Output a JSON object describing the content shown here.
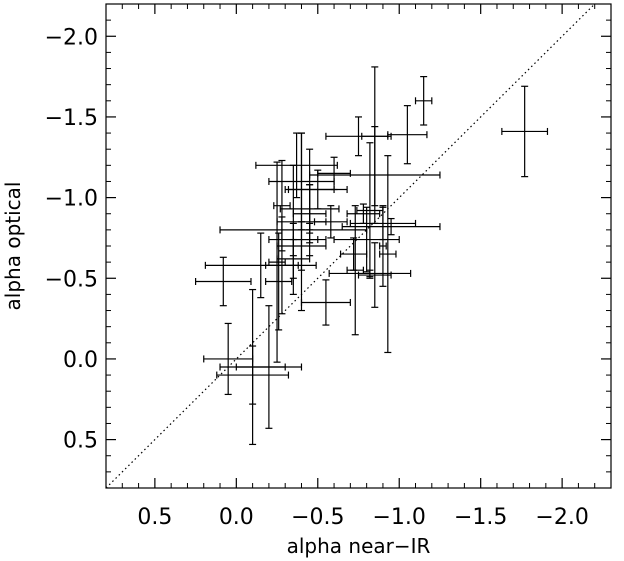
{
  "chart_data": {
    "type": "scatter",
    "xlabel": "alpha near−IR",
    "ylabel": "alpha optical",
    "xlim": [
      0.8,
      -2.3
    ],
    "ylim": [
      0.8,
      -2.2
    ],
    "x_ticks": [
      0.5,
      0.0,
      -0.5,
      -1.0,
      -1.5,
      -2.0
    ],
    "x_tick_labels": [
      "0.5",
      "0.0",
      "−0.5",
      "−1.0",
      "−1.5",
      "−2.0"
    ],
    "y_ticks": [
      -2.0,
      -1.5,
      -1.0,
      -0.5,
      0.0,
      0.5
    ],
    "y_tick_labels": [
      "−2.0",
      "−1.5",
      "−1.0",
      "−0.5",
      "0.0",
      "0.5"
    ],
    "reference_line": "y = x (dotted)",
    "grid": false,
    "legend": "none",
    "points": [
      {
        "x": 0.05,
        "y": 0.0,
        "xerr": 0.15,
        "yerr": 0.22
      },
      {
        "x": -0.1,
        "y": 0.1,
        "xerr": 0.22,
        "yerr": 0.18
      },
      {
        "x": -0.1,
        "y": 0.05,
        "xerr": 0.2,
        "yerr": 0.48
      },
      {
        "x": -0.2,
        "y": 0.05,
        "xerr": 0.2,
        "yerr": 0.38
      },
      {
        "x": 0.08,
        "y": -0.48,
        "xerr": 0.17,
        "yerr": 0.15
      },
      {
        "x": -0.26,
        "y": -0.48,
        "xerr": 0.08,
        "yerr": 0.3
      },
      {
        "x": -0.15,
        "y": -0.58,
        "xerr": 0.34,
        "yerr": 0.2
      },
      {
        "x": -0.28,
        "y": -0.58,
        "xerr": 0.1,
        "yerr": 0.3
      },
      {
        "x": -0.25,
        "y": -0.6,
        "xerr": 0.05,
        "yerr": 0.62
      },
      {
        "x": -0.35,
        "y": -0.62,
        "xerr": 0.1,
        "yerr": 0.12
      },
      {
        "x": -0.4,
        "y": -0.7,
        "xerr": 0.15,
        "yerr": 0.15
      },
      {
        "x": -0.35,
        "y": -0.74,
        "xerr": 0.15,
        "yerr": 0.1
      },
      {
        "x": -0.45,
        "y": -0.74,
        "xerr": 0.1,
        "yerr": 0.1
      },
      {
        "x": -0.35,
        "y": -0.8,
        "xerr": 0.45,
        "yerr": 0.4
      },
      {
        "x": -0.4,
        "y": -0.85,
        "xerr": 0.15,
        "yerr": 0.55
      },
      {
        "x": -0.45,
        "y": -0.9,
        "xerr": 0.1,
        "yerr": 0.18
      },
      {
        "x": -0.45,
        "y": -0.93,
        "xerr": 0.18,
        "yerr": 0.15
      },
      {
        "x": -0.45,
        "y": -1.05,
        "xerr": 0.15,
        "yerr": 0.25
      },
      {
        "x": -0.5,
        "y": -1.05,
        "xerr": 0.18,
        "yerr": 0.12
      },
      {
        "x": -0.4,
        "y": -1.1,
        "xerr": 0.2,
        "yerr": 0.3
      },
      {
        "x": -0.37,
        "y": -1.2,
        "xerr": 0.25,
        "yerr": 0.2
      },
      {
        "x": -0.28,
        "y": -0.95,
        "xerr": 0.05,
        "yerr": 0.28
      },
      {
        "x": -0.58,
        "y": -0.85,
        "xerr": 0.1,
        "yerr": 0.1
      },
      {
        "x": -0.6,
        "y": -1.15,
        "xerr": 0.1,
        "yerr": 0.1
      },
      {
        "x": -0.85,
        "y": -1.14,
        "xerr": 0.4,
        "yerr": 0.3
      },
      {
        "x": -0.78,
        "y": -0.9,
        "xerr": 0.1,
        "yerr": 0.06
      },
      {
        "x": -0.82,
        "y": -0.92,
        "xerr": 0.08,
        "yerr": 0.42
      },
      {
        "x": -0.9,
        "y": -0.84,
        "xerr": 0.2,
        "yerr": 0.1
      },
      {
        "x": -0.95,
        "y": -0.82,
        "xerr": 0.3,
        "yerr": 0.05
      },
      {
        "x": -0.72,
        "y": -0.65,
        "xerr": 0.08,
        "yerr": 0.1
      },
      {
        "x": -0.8,
        "y": -0.74,
        "xerr": 0.2,
        "yerr": 0.2
      },
      {
        "x": -0.85,
        "y": -0.52,
        "xerr": 0.1,
        "yerr": 0.2
      },
      {
        "x": -0.73,
        "y": -0.55,
        "xerr": 0.05,
        "yerr": 0.4
      },
      {
        "x": -0.82,
        "y": -0.53,
        "xerr": 0.25,
        "yerr": 0.02
      },
      {
        "x": -0.9,
        "y": -0.7,
        "xerr": 0.02,
        "yerr": 0.25
      },
      {
        "x": -0.93,
        "y": -0.65,
        "xerr": 0.05,
        "yerr": 0.61
      },
      {
        "x": -0.75,
        "y": -1.38,
        "xerr": 0.2,
        "yerr": 0.12
      },
      {
        "x": -0.85,
        "y": -1.38,
        "xerr": 0.08,
        "yerr": 0.43
      },
      {
        "x": -1.05,
        "y": -1.39,
        "xerr": 0.12,
        "yerr": 0.18
      },
      {
        "x": -1.15,
        "y": -1.6,
        "xerr": 0.05,
        "yerr": 0.15
      },
      {
        "x": -0.55,
        "y": -0.35,
        "xerr": 0.15,
        "yerr": 0.14
      },
      {
        "x": -1.77,
        "y": -1.41,
        "xerr": 0.14,
        "yerr": 0.28
      }
    ]
  }
}
